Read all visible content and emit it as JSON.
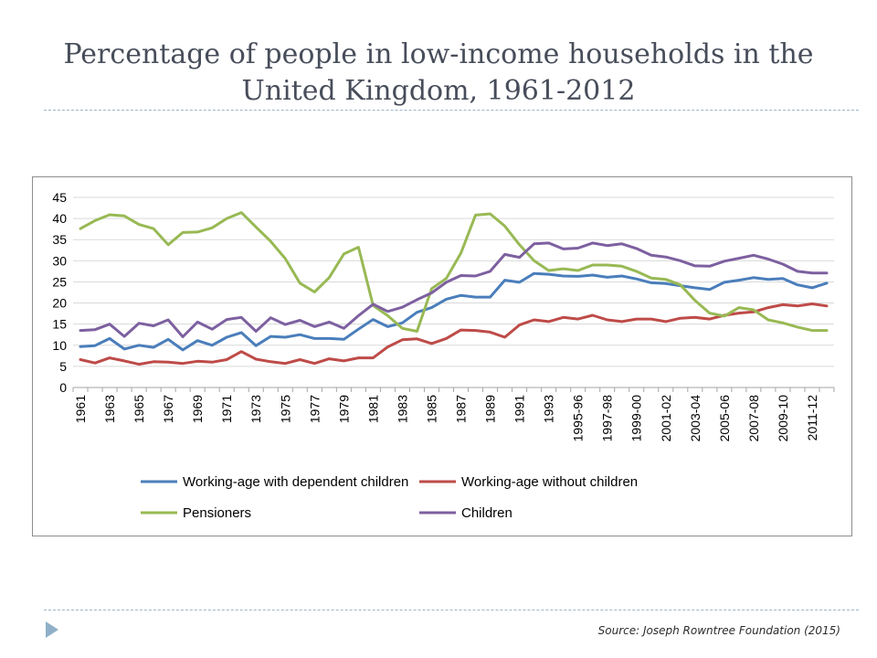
{
  "slide": {
    "title_line1": "Percentage of people in low-income households in the",
    "title_line2": "United Kingdom, 1961-2012",
    "source": "Source: Joseph Rowntree Foundation (2015)"
  },
  "colors": {
    "working_age_children": "#4a7ebb",
    "working_age_no_children": "#be4b48",
    "pensioners": "#98b954",
    "children": "#7d60a0",
    "gridline": "#d9d9d9",
    "axis_text": "#000000"
  },
  "chart_data": {
    "type": "line",
    "categories": [
      "1961",
      "1962",
      "1963",
      "1964",
      "1965",
      "1966",
      "1967",
      "1968",
      "1969",
      "1970",
      "1971",
      "1972",
      "1973",
      "1974",
      "1975",
      "1976",
      "1977",
      "1978",
      "1979",
      "1980",
      "1981",
      "1982",
      "1983",
      "1984",
      "1985",
      "1986",
      "1987",
      "1988",
      "1989",
      "1990",
      "1991",
      "1992",
      "1993",
      "1994",
      "1995-96",
      "1996-97",
      "1997-98",
      "1998-99",
      "1999-00",
      "2000-01",
      "2001-02",
      "2002-03",
      "2003-04",
      "2004-05",
      "2005-06",
      "2006-07",
      "2007-08",
      "2008-09",
      "2009-10",
      "2010-11",
      "2011-12",
      "2012-13"
    ],
    "tick_labels": [
      "1961",
      "1963",
      "1965",
      "1967",
      "1969",
      "1971",
      "1973",
      "1975",
      "1977",
      "1979",
      "1981",
      "1983",
      "1985",
      "1987",
      "1989",
      "1991",
      "1993",
      "1995-96",
      "1997-98",
      "1999-00",
      "2001-02",
      "2003-04",
      "2005-06",
      "2007-08",
      "2009-10",
      "2011-12"
    ],
    "ylim": [
      0,
      45
    ],
    "yticks": [
      0,
      5,
      10,
      15,
      20,
      25,
      30,
      35,
      40,
      45
    ],
    "grid": true,
    "legend_position": "bottom",
    "series": [
      {
        "name": "Working-age with dependent children",
        "color_key": "working_age_children",
        "values": [
          9.7,
          9.9,
          11.6,
          9.1,
          10.0,
          9.5,
          11.4,
          8.9,
          11.1,
          10.0,
          11.9,
          13.0,
          9.9,
          12.1,
          11.9,
          12.5,
          11.6,
          11.6,
          11.4,
          13.8,
          16.1,
          14.4,
          15.3,
          17.8,
          18.9,
          20.9,
          21.8,
          21.4,
          21.4,
          25.4,
          24.9,
          27.0,
          26.8,
          26.4,
          26.3,
          26.6,
          26.1,
          26.4,
          25.7,
          24.8,
          24.6,
          24.1,
          23.6,
          23.2,
          24.9,
          25.4,
          26.0,
          25.6,
          25.8,
          24.3,
          23.6,
          24.7
        ]
      },
      {
        "name": "Working-age without children",
        "color_key": "working_age_no_children",
        "values": [
          6.6,
          5.8,
          7.0,
          6.3,
          5.5,
          6.1,
          6.0,
          5.7,
          6.2,
          6.0,
          6.6,
          8.5,
          6.7,
          6.1,
          5.7,
          6.6,
          5.7,
          6.8,
          6.3,
          7.0,
          7.0,
          9.6,
          11.3,
          11.5,
          10.4,
          11.6,
          13.6,
          13.5,
          13.1,
          11.9,
          14.8,
          16.0,
          15.6,
          16.6,
          16.2,
          17.1,
          16.0,
          15.6,
          16.2,
          16.2,
          15.6,
          16.4,
          16.6,
          16.2,
          17.1,
          17.6,
          17.9,
          18.9,
          19.6,
          19.3,
          19.8,
          19.3
        ]
      },
      {
        "name": "Pensioners",
        "color_key": "pensioners",
        "values": [
          37.6,
          39.5,
          40.9,
          40.6,
          38.6,
          37.6,
          33.8,
          36.7,
          36.8,
          37.8,
          40.0,
          41.4,
          38.0,
          34.6,
          30.5,
          24.7,
          22.6,
          26.0,
          31.6,
          33.2,
          19.4,
          17.0,
          14.0,
          13.3,
          23.4,
          25.8,
          31.8,
          40.8,
          41.1,
          38.2,
          33.8,
          30.0,
          27.7,
          28.1,
          27.7,
          29.0,
          29.0,
          28.7,
          27.5,
          25.9,
          25.6,
          24.3,
          20.6,
          17.6,
          16.9,
          18.9,
          18.4,
          16.0,
          15.3,
          14.3,
          13.5,
          13.5
        ]
      },
      {
        "name": "Children",
        "color_key": "children",
        "values": [
          13.5,
          13.7,
          15.0,
          12.1,
          15.2,
          14.6,
          16.0,
          12.0,
          15.5,
          13.8,
          16.1,
          16.6,
          13.3,
          16.5,
          14.9,
          15.9,
          14.4,
          15.5,
          14.0,
          17.0,
          19.7,
          18.0,
          19.0,
          20.8,
          22.4,
          24.9,
          26.5,
          26.4,
          27.5,
          31.5,
          30.8,
          34.0,
          34.2,
          32.8,
          33.0,
          34.2,
          33.6,
          34.0,
          32.9,
          31.3,
          30.9,
          30.0,
          28.8,
          28.7,
          29.9,
          30.6,
          31.3,
          30.4,
          29.2,
          27.5,
          27.1,
          27.1
        ]
      }
    ]
  }
}
